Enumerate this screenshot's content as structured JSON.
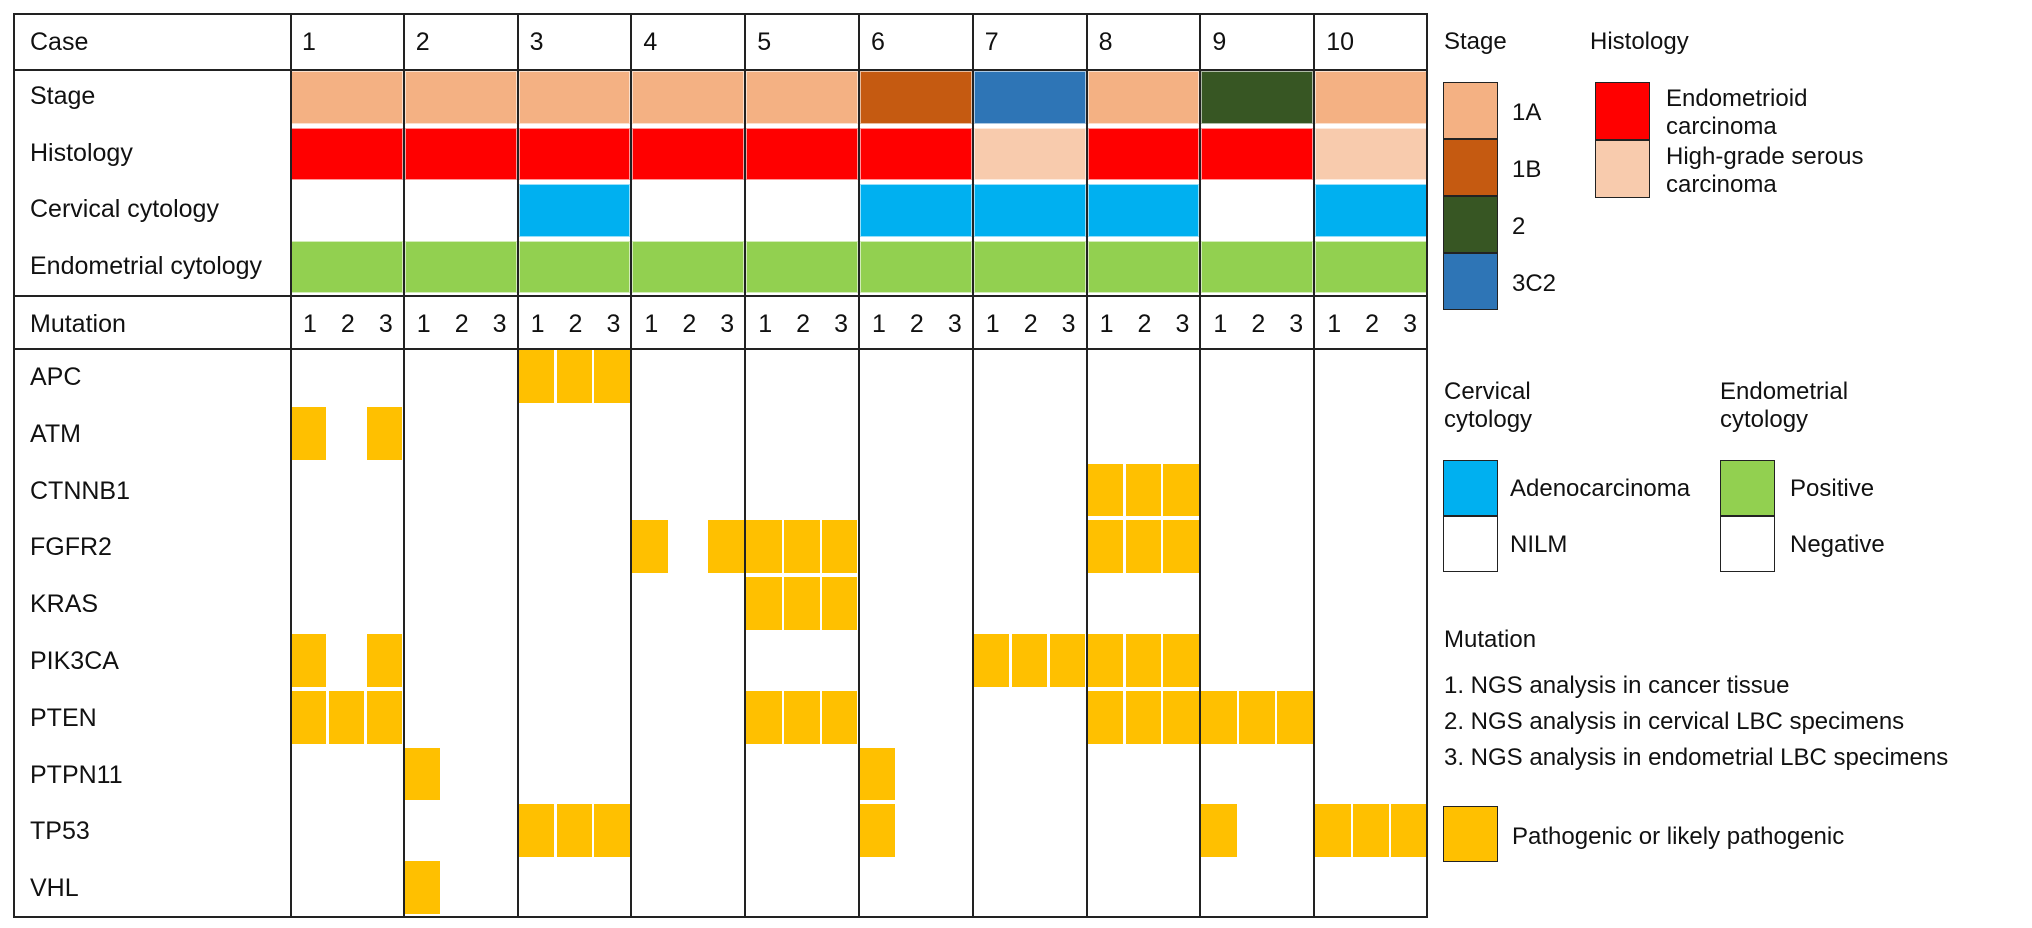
{
  "colors": {
    "stage_1A": "#f4b183",
    "stage_1B": "#c55a11",
    "stage_2": "#375623",
    "stage_3C2": "#2e75b6",
    "histology_endometrioid": "#ff0000",
    "histology_serous": "#f8cbad",
    "cervical_adenocarcinoma": "#00b0f0",
    "cervical_nilm": "#ffffff",
    "endometrial_positive": "#92d050",
    "endometrial_negative": "#ffffff",
    "mutation": "#ffc000",
    "grid": "#222222"
  },
  "table": {
    "case_label": "Case",
    "row_labels": {
      "stage": "Stage",
      "histology": "Histology",
      "cervical": "Cervical cytology",
      "endometrial": "Endometrial cytology"
    },
    "mutation_label": "Mutation",
    "cases": [
      "1",
      "2",
      "3",
      "4",
      "5",
      "6",
      "7",
      "8",
      "9",
      "10"
    ],
    "sub_columns": [
      "1",
      "2",
      "3"
    ],
    "stage": [
      "1A",
      "1A",
      "1A",
      "1A",
      "1A",
      "1B",
      "3C2",
      "1A",
      "2",
      "1A"
    ],
    "histology": [
      "Endometrioid",
      "Endometrioid",
      "Endometrioid",
      "Endometrioid",
      "Endometrioid",
      "Endometrioid",
      "Serous",
      "Endometrioid",
      "Endometrioid",
      "Serous"
    ],
    "cervical": [
      "NILM",
      "NILM",
      "Adenocarcinoma",
      "NILM",
      "NILM",
      "Adenocarcinoma",
      "Adenocarcinoma",
      "Adenocarcinoma",
      "NILM",
      "Adenocarcinoma"
    ],
    "endometrial": [
      "Positive",
      "Positive",
      "Positive",
      "Positive",
      "Positive",
      "Positive",
      "Positive",
      "Positive",
      "Positive",
      "Positive"
    ],
    "genes": [
      "APC",
      "ATM",
      "CTNNB1",
      "FGFR2",
      "KRAS",
      "PIK3CA",
      "PTEN",
      "PTPN11",
      "TP53",
      "VHL"
    ],
    "mutations": {
      "APC": [
        [
          0,
          0,
          0
        ],
        [
          0,
          0,
          0
        ],
        [
          1,
          1,
          1
        ],
        [
          0,
          0,
          0
        ],
        [
          0,
          0,
          0
        ],
        [
          0,
          0,
          0
        ],
        [
          0,
          0,
          0
        ],
        [
          0,
          0,
          0
        ],
        [
          0,
          0,
          0
        ],
        [
          0,
          0,
          0
        ]
      ],
      "ATM": [
        [
          1,
          0,
          1
        ],
        [
          0,
          0,
          0
        ],
        [
          0,
          0,
          0
        ],
        [
          0,
          0,
          0
        ],
        [
          0,
          0,
          0
        ],
        [
          0,
          0,
          0
        ],
        [
          0,
          0,
          0
        ],
        [
          0,
          0,
          0
        ],
        [
          0,
          0,
          0
        ],
        [
          0,
          0,
          0
        ]
      ],
      "CTNNB1": [
        [
          0,
          0,
          0
        ],
        [
          0,
          0,
          0
        ],
        [
          0,
          0,
          0
        ],
        [
          0,
          0,
          0
        ],
        [
          0,
          0,
          0
        ],
        [
          0,
          0,
          0
        ],
        [
          0,
          0,
          0
        ],
        [
          1,
          1,
          1
        ],
        [
          0,
          0,
          0
        ],
        [
          0,
          0,
          0
        ]
      ],
      "FGFR2": [
        [
          0,
          0,
          0
        ],
        [
          0,
          0,
          0
        ],
        [
          0,
          0,
          0
        ],
        [
          1,
          0,
          1
        ],
        [
          1,
          1,
          1
        ],
        [
          0,
          0,
          0
        ],
        [
          0,
          0,
          0
        ],
        [
          1,
          1,
          1
        ],
        [
          0,
          0,
          0
        ],
        [
          0,
          0,
          0
        ]
      ],
      "KRAS": [
        [
          0,
          0,
          0
        ],
        [
          0,
          0,
          0
        ],
        [
          0,
          0,
          0
        ],
        [
          0,
          0,
          0
        ],
        [
          1,
          1,
          1
        ],
        [
          0,
          0,
          0
        ],
        [
          0,
          0,
          0
        ],
        [
          0,
          0,
          0
        ],
        [
          0,
          0,
          0
        ],
        [
          0,
          0,
          0
        ]
      ],
      "PIK3CA": [
        [
          1,
          0,
          1
        ],
        [
          0,
          0,
          0
        ],
        [
          0,
          0,
          0
        ],
        [
          0,
          0,
          0
        ],
        [
          0,
          0,
          0
        ],
        [
          0,
          0,
          0
        ],
        [
          1,
          1,
          1
        ],
        [
          1,
          1,
          1
        ],
        [
          0,
          0,
          0
        ],
        [
          0,
          0,
          0
        ]
      ],
      "PTEN": [
        [
          1,
          1,
          1
        ],
        [
          0,
          0,
          0
        ],
        [
          0,
          0,
          0
        ],
        [
          0,
          0,
          0
        ],
        [
          1,
          1,
          1
        ],
        [
          0,
          0,
          0
        ],
        [
          0,
          0,
          0
        ],
        [
          1,
          1,
          1
        ],
        [
          1,
          1,
          1
        ],
        [
          0,
          0,
          0
        ]
      ],
      "PTPN11": [
        [
          0,
          0,
          0
        ],
        [
          1,
          0,
          0
        ],
        [
          0,
          0,
          0
        ],
        [
          0,
          0,
          0
        ],
        [
          0,
          0,
          0
        ],
        [
          1,
          0,
          0
        ],
        [
          0,
          0,
          0
        ],
        [
          0,
          0,
          0
        ],
        [
          0,
          0,
          0
        ],
        [
          0,
          0,
          0
        ]
      ],
      "TP53": [
        [
          0,
          0,
          0
        ],
        [
          0,
          0,
          0
        ],
        [
          1,
          1,
          1
        ],
        [
          0,
          0,
          0
        ],
        [
          0,
          0,
          0
        ],
        [
          1,
          0,
          0
        ],
        [
          0,
          0,
          0
        ],
        [
          0,
          0,
          0
        ],
        [
          1,
          0,
          0
        ],
        [
          1,
          1,
          1
        ]
      ],
      "VHL": [
        [
          0,
          0,
          0
        ],
        [
          1,
          0,
          0
        ],
        [
          0,
          0,
          0
        ],
        [
          0,
          0,
          0
        ],
        [
          0,
          0,
          0
        ],
        [
          0,
          0,
          0
        ],
        [
          0,
          0,
          0
        ],
        [
          0,
          0,
          0
        ],
        [
          0,
          0,
          0
        ],
        [
          0,
          0,
          0
        ]
      ]
    }
  },
  "legend": {
    "stage_title": "Stage",
    "stage_items": [
      "1A",
      "1B",
      "2",
      "3C2"
    ],
    "histology_title": "Histology",
    "histology_items": [
      "Endometrioid\ncarcinoma",
      "High-grade serous\ncarcinoma"
    ],
    "cervical_title": "Cervical\ncytology",
    "cervical_items": [
      "Adenocarcinoma",
      "NILM"
    ],
    "endometrial_title": "Endometrial\ncytology",
    "endometrial_items": [
      "Positive",
      "Negative"
    ],
    "mutation_title": "Mutation",
    "mutation_notes": [
      "1. NGS analysis in cancer tissue",
      "2. NGS analysis in cervical LBC specimens",
      "3. NGS analysis in endometrial LBC specimens"
    ],
    "pathogenic_label": "Pathogenic or likely pathogenic"
  }
}
